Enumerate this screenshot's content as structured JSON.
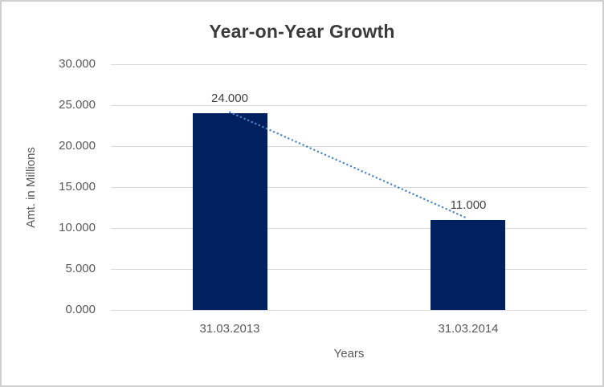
{
  "chart_data": {
    "type": "bar",
    "title": "Year-on-Year Growth",
    "categories": [
      "31.03.2013",
      "31.03.2014"
    ],
    "values": [
      24,
      11
    ],
    "data_labels": [
      "24.000",
      "11.000"
    ],
    "xlabel": "Years",
    "ylabel": "Amt. in Millions",
    "ylim": [
      0,
      30
    ],
    "ytick_step": 5,
    "yticks": [
      "0.000",
      "5.000",
      "10.000",
      "15.000",
      "20.000",
      "25.000",
      "30.000"
    ],
    "grid": true,
    "legend": "none",
    "trendline": {
      "style": "dotted",
      "from_value": 24,
      "to_value": 11
    },
    "colors": {
      "bar": "#002060",
      "trendline": "#4a86c8",
      "gridline": "#d9d9d9",
      "tick_text": "#595959",
      "data_label_text": "#404040",
      "title_text": "#3b3b3b",
      "frame_border": "#cfcfcf",
      "background": "#ffffff"
    }
  }
}
